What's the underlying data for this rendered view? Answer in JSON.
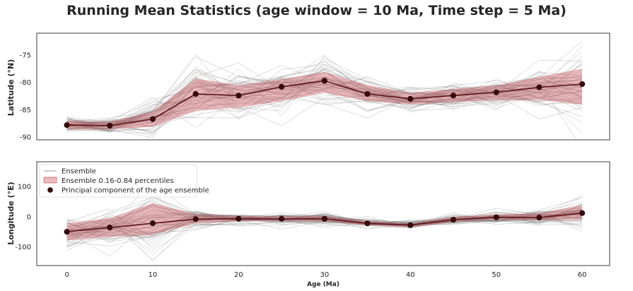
{
  "title": "Running Mean Statistics (age window = 10 Ma, Time step = 5 Ma)",
  "colors": {
    "ensemble": "#7f7f7f",
    "band": "#c8474f",
    "mean_line": "#5a1216",
    "point": "#3d0a0a"
  },
  "chart_data": [
    {
      "type": "line",
      "ylabel": "Latitude (°N)",
      "xlabel": "",
      "xlim": [
        -3.5,
        63.2
      ],
      "ylim": [
        -90.5,
        -71
      ],
      "yticks": [
        -75,
        -80,
        -85,
        -90
      ],
      "x": [
        0,
        5,
        10,
        15,
        20,
        25,
        30,
        35,
        40,
        45,
        50,
        55,
        60
      ],
      "series": [
        {
          "name": "Principal component of the age ensemble",
          "values": [
            -87.8,
            -87.9,
            -86.7,
            -82.1,
            -82.4,
            -80.8,
            -79.7,
            -82.1,
            -83.0,
            -82.4,
            -81.8,
            -80.9,
            -80.3
          ]
        }
      ],
      "band": {
        "name": "Ensemble 0.16-0.84 percentiles",
        "low": [
          -88.6,
          -88.6,
          -88.1,
          -85.2,
          -84.6,
          -83.4,
          -81.9,
          -83.4,
          -84.0,
          -83.6,
          -83.2,
          -83.2,
          -84.0
        ],
        "high": [
          -87.0,
          -87.2,
          -85.3,
          -79.3,
          -80.5,
          -79.4,
          -78.1,
          -80.5,
          -81.9,
          -81.2,
          -80.5,
          -79.0,
          -77.5
        ]
      }
    },
    {
      "type": "line",
      "ylabel": "Longitude (°E)",
      "xlabel": "Age (Ma)",
      "xlim": [
        -3.5,
        63.2
      ],
      "ylim": [
        -162,
        182
      ],
      "yticks": [
        100,
        0,
        -100
      ],
      "xticks": [
        0,
        10,
        20,
        30,
        40,
        50,
        60
      ],
      "x": [
        0,
        5,
        10,
        15,
        20,
        25,
        30,
        35,
        40,
        45,
        50,
        55,
        60
      ],
      "series": [
        {
          "name": "Principal component of the age ensemble",
          "values": [
            -50,
            -36,
            -22,
            -8,
            -7,
            -7,
            -7,
            -22,
            -28,
            -10,
            -2,
            -3,
            12
          ]
        }
      ],
      "band": {
        "name": "Ensemble 0.16-0.84 percentiles",
        "low": [
          -78,
          -67,
          -60,
          -22,
          -15,
          -14,
          -16,
          -28,
          -35,
          -18,
          -10,
          -12,
          -10
        ],
        "high": [
          -22,
          -5,
          45,
          8,
          3,
          2,
          3,
          -15,
          -22,
          0,
          8,
          12,
          38
        ]
      },
      "legend": {
        "placement": "top-left",
        "entries": [
          "Ensemble",
          "Ensemble 0.16-0.84 percentiles",
          "Principal component of the age ensemble"
        ]
      }
    }
  ]
}
